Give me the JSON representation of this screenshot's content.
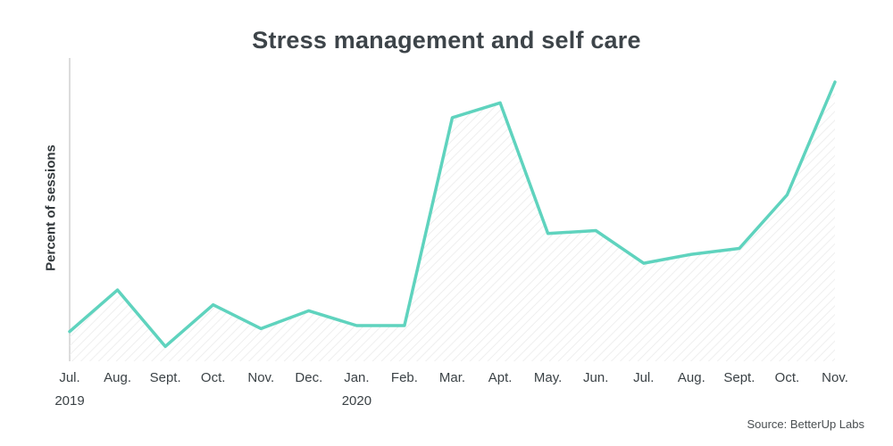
{
  "title": "Stress management and self care",
  "y_axis_label": "Percent of sessions",
  "source": "Source: BetterUp Labs",
  "colors": {
    "line": "#5fd3be",
    "hatch": "#ebebeb",
    "axis": "#dcdcdc",
    "title_text": "#3d4449",
    "label_text": "#3b4246"
  },
  "chart_data": {
    "type": "area",
    "title": "Stress management and self care",
    "xlabel": "",
    "ylabel": "Percent of sessions",
    "ylim": [
      0,
      100
    ],
    "grid": false,
    "legend": false,
    "fill_style": "diagonal-hatch",
    "x": [
      "Jul.",
      "Aug.",
      "Sept.",
      "Oct.",
      "Nov.",
      "Dec.",
      "Jan.",
      "Feb.",
      "Mar.",
      "Apt.",
      "May.",
      "Jun.",
      "Jul.",
      "Aug.",
      "Sept.",
      "Oct.",
      "Nov."
    ],
    "year_markers": [
      {
        "index": 0,
        "label": "2019"
      },
      {
        "index": 6,
        "label": "2020"
      }
    ],
    "values": [
      10,
      24,
      5,
      19,
      11,
      17,
      12,
      12,
      82,
      87,
      43,
      44,
      33,
      36,
      38,
      56,
      94
    ]
  }
}
